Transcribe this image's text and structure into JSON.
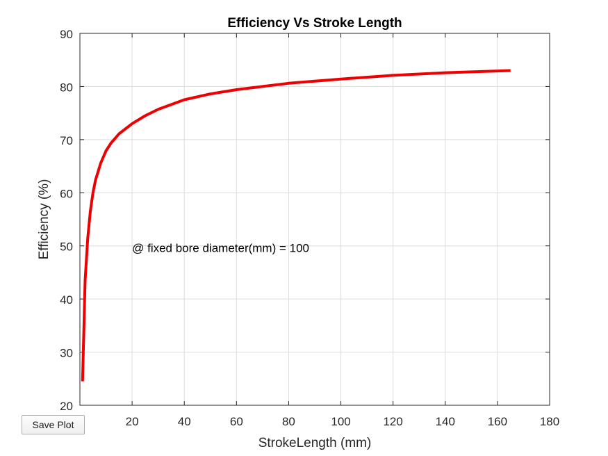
{
  "save_button": {
    "label": "Save Plot"
  },
  "chart_data": {
    "type": "line",
    "title": "Efficiency Vs Stroke Length",
    "xlabel": "StrokeLength (mm)",
    "ylabel": "Efficiency (%)",
    "xlim": [
      0,
      180
    ],
    "ylim": [
      20,
      90
    ],
    "xticks": [
      20,
      40,
      60,
      80,
      100,
      120,
      140,
      160,
      180
    ],
    "yticks": [
      20,
      30,
      40,
      50,
      60,
      70,
      80,
      90
    ],
    "grid": true,
    "annotation": {
      "text": "@ fixed bore diameter(mm) =  100",
      "x": 20,
      "y": 50
    },
    "series": [
      {
        "color": "#ee0000",
        "x": [
          1,
          2,
          3,
          4,
          5,
          6,
          8,
          10,
          12,
          15,
          20,
          25,
          30,
          40,
          50,
          60,
          80,
          100,
          120,
          140,
          165
        ],
        "y": [
          24.5,
          43.5,
          51.5,
          56.5,
          60.0,
          62.4,
          65.6,
          67.9,
          69.4,
          71.1,
          73.0,
          74.5,
          75.7,
          77.5,
          78.6,
          79.4,
          80.6,
          81.4,
          82.1,
          82.6,
          83.0
        ]
      }
    ]
  }
}
